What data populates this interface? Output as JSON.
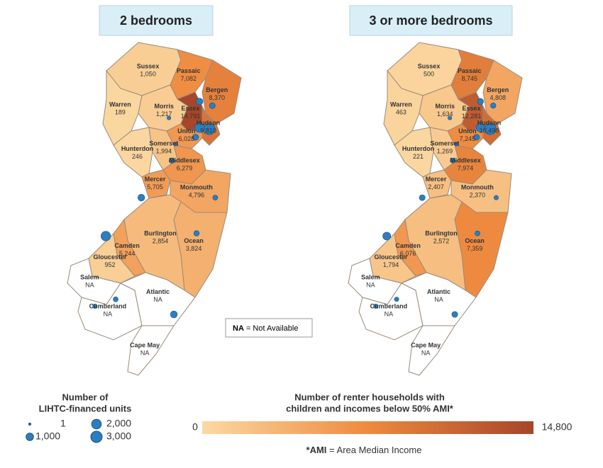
{
  "maps": [
    {
      "title": "2 bedrooms",
      "counties": [
        {
          "name": "Sussex",
          "value": 1050,
          "label": "1,050"
        },
        {
          "name": "Passaic",
          "value": 7082,
          "label": "7,082"
        },
        {
          "name": "Bergen",
          "value": 8370,
          "label": "8,370"
        },
        {
          "name": "Warren",
          "value": 189,
          "label": "189"
        },
        {
          "name": "Morris",
          "value": 1217,
          "label": "1,217"
        },
        {
          "name": "Essex",
          "value": 14791,
          "label": "14,791"
        },
        {
          "name": "Hudson",
          "value": 9810,
          "label": "9,810"
        },
        {
          "name": "Union",
          "value": 6028,
          "label": "6,028"
        },
        {
          "name": "Hunterdon",
          "value": 246,
          "label": "246"
        },
        {
          "name": "Somerset",
          "value": 1994,
          "label": "1,994"
        },
        {
          "name": "Middlesex",
          "value": 6279,
          "label": "6,279"
        },
        {
          "name": "Mercer",
          "value": 5705,
          "label": "5,705"
        },
        {
          "name": "Monmouth",
          "value": 4796,
          "label": "4,796"
        },
        {
          "name": "Ocean",
          "value": 3824,
          "label": "3,824"
        },
        {
          "name": "Burlington",
          "value": 2854,
          "label": "2,854"
        },
        {
          "name": "Camden",
          "value": 5244,
          "label": "5,244"
        },
        {
          "name": "Gloucester",
          "value": 952,
          "label": "952"
        },
        {
          "name": "Salem",
          "value": null,
          "label": "NA"
        },
        {
          "name": "Cumberland",
          "value": null,
          "label": "NA"
        },
        {
          "name": "Atlantic",
          "value": null,
          "label": "NA"
        },
        {
          "name": "Cape May",
          "value": null,
          "label": "NA"
        }
      ],
      "points": [
        {
          "lon": -74.07,
          "lat": 40.72,
          "units": 3000
        },
        {
          "lon": -74.17,
          "lat": 40.73,
          "units": 2000
        },
        {
          "lon": -75.12,
          "lat": 39.94,
          "units": 2000
        },
        {
          "lon": -74.17,
          "lat": 40.92,
          "units": 800
        },
        {
          "lon": -74.04,
          "lat": 40.89,
          "units": 500
        },
        {
          "lon": -74.76,
          "lat": 40.22,
          "units": 800
        },
        {
          "lon": -74.43,
          "lat": 39.37,
          "units": 800
        },
        {
          "lon": -74.45,
          "lat": 40.49,
          "units": 400
        },
        {
          "lon": -74.21,
          "lat": 40.66,
          "units": 600
        },
        {
          "lon": -74.01,
          "lat": 40.22,
          "units": 300
        },
        {
          "lon": -75.02,
          "lat": 39.48,
          "units": 300
        },
        {
          "lon": -74.2,
          "lat": 39.96,
          "units": 400
        },
        {
          "lon": -74.41,
          "lat": 40.61,
          "units": 100
        },
        {
          "lon": -74.48,
          "lat": 40.8,
          "units": 100
        },
        {
          "lon": -75.23,
          "lat": 39.43,
          "units": 200
        }
      ]
    },
    {
      "title": "3 or more bedrooms",
      "counties": [
        {
          "name": "Sussex",
          "value": 500,
          "label": "500"
        },
        {
          "name": "Passaic",
          "value": 8745,
          "label": "8,745"
        },
        {
          "name": "Bergen",
          "value": 4808,
          "label": "4,808"
        },
        {
          "name": "Warren",
          "value": 463,
          "label": "463"
        },
        {
          "name": "Morris",
          "value": 1634,
          "label": "1,634"
        },
        {
          "name": "Essex",
          "value": 12281,
          "label": "12,281"
        },
        {
          "name": "Hudson",
          "value": 10498,
          "label": "10,498"
        },
        {
          "name": "Union",
          "value": 7245,
          "label": "7,245"
        },
        {
          "name": "Hunterdon",
          "value": 221,
          "label": "221"
        },
        {
          "name": "Somerset",
          "value": 1269,
          "label": "1,269"
        },
        {
          "name": "Middlesex",
          "value": 7974,
          "label": "7,974"
        },
        {
          "name": "Mercer",
          "value": 2407,
          "label": "2,407"
        },
        {
          "name": "Monmouth",
          "value": 2370,
          "label": "2,370"
        },
        {
          "name": "Ocean",
          "value": 7359,
          "label": "7,359"
        },
        {
          "name": "Burlington",
          "value": 2572,
          "label": "2,572"
        },
        {
          "name": "Camden",
          "value": 6076,
          "label": "6,076"
        },
        {
          "name": "Gloucester",
          "value": 1794,
          "label": "1,794"
        },
        {
          "name": "Salem",
          "value": null,
          "label": "NA"
        },
        {
          "name": "Cumberland",
          "value": null,
          "label": "NA"
        },
        {
          "name": "Atlantic",
          "value": null,
          "label": "NA"
        },
        {
          "name": "Cape May",
          "value": null,
          "label": "NA"
        }
      ],
      "points": [
        {
          "lon": -74.07,
          "lat": 40.72,
          "units": 3000
        },
        {
          "lon": -74.17,
          "lat": 40.73,
          "units": 1500
        },
        {
          "lon": -75.12,
          "lat": 39.94,
          "units": 1200
        },
        {
          "lon": -74.17,
          "lat": 40.92,
          "units": 600
        },
        {
          "lon": -74.04,
          "lat": 40.89,
          "units": 400
        },
        {
          "lon": -74.76,
          "lat": 40.22,
          "units": 500
        },
        {
          "lon": -74.43,
          "lat": 39.37,
          "units": 500
        },
        {
          "lon": -74.45,
          "lat": 40.49,
          "units": 300
        },
        {
          "lon": -74.21,
          "lat": 40.66,
          "units": 500
        },
        {
          "lon": -74.01,
          "lat": 40.22,
          "units": 200
        },
        {
          "lon": -75.02,
          "lat": 39.48,
          "units": 200
        },
        {
          "lon": -74.2,
          "lat": 39.96,
          "units": 300
        },
        {
          "lon": -74.41,
          "lat": 40.61,
          "units": 100
        },
        {
          "lon": -74.48,
          "lat": 40.8,
          "units": 100
        },
        {
          "lon": -75.23,
          "lat": 39.43,
          "units": 200
        }
      ]
    }
  ],
  "note": {
    "bold": "NA",
    "text": "= Not Available"
  },
  "size_legend": {
    "title": [
      "Number of",
      "LIHTC-financed units"
    ],
    "items": [
      {
        "value": 1,
        "label": "1"
      },
      {
        "value": 1000,
        "label": "1,000"
      },
      {
        "value": 2000,
        "label": "2,000"
      },
      {
        "value": 3000,
        "label": "3,000"
      }
    ]
  },
  "color_legend": {
    "title": [
      "Number of renter households with",
      "children and incomes below 50% AMI*"
    ],
    "range": [
      {
        "value": 0,
        "label": "0"
      },
      {
        "value": 14800,
        "label": "14,800"
      }
    ]
  },
  "footnote": {
    "bold": "*AMI",
    "text": "= Area Median Income"
  }
}
